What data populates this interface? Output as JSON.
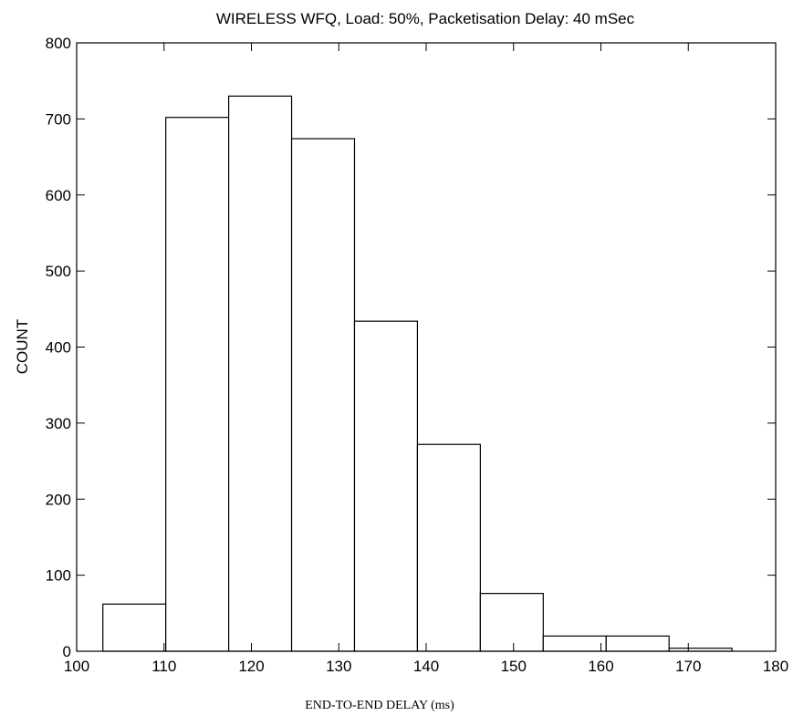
{
  "chart_data": {
    "type": "bar",
    "title": "WIRELESS WFQ,  Load: 50%,  Packetisation Delay: 40 mSec",
    "xlabel": "END-TO-END DELAY (ms)",
    "ylabel": "COUNT",
    "xlim": [
      100,
      180
    ],
    "ylim": [
      0,
      800
    ],
    "xticks": [
      100,
      110,
      120,
      130,
      140,
      150,
      160,
      170,
      180
    ],
    "yticks": [
      0,
      100,
      200,
      300,
      400,
      500,
      600,
      700,
      800
    ],
    "bins": [
      {
        "start": 103.0,
        "end": 110.2,
        "count": 62
      },
      {
        "start": 110.2,
        "end": 117.4,
        "count": 702
      },
      {
        "start": 117.4,
        "end": 124.6,
        "count": 730
      },
      {
        "start": 124.6,
        "end": 131.8,
        "count": 674
      },
      {
        "start": 131.8,
        "end": 139.0,
        "count": 434
      },
      {
        "start": 139.0,
        "end": 146.2,
        "count": 272
      },
      {
        "start": 146.2,
        "end": 153.4,
        "count": 76
      },
      {
        "start": 153.4,
        "end": 160.6,
        "count": 20
      },
      {
        "start": 160.6,
        "end": 167.8,
        "count": 20
      },
      {
        "start": 167.8,
        "end": 175.0,
        "count": 4
      }
    ],
    "grid": false,
    "bar_fill": "#ffffff",
    "bar_stroke": "#000000"
  }
}
